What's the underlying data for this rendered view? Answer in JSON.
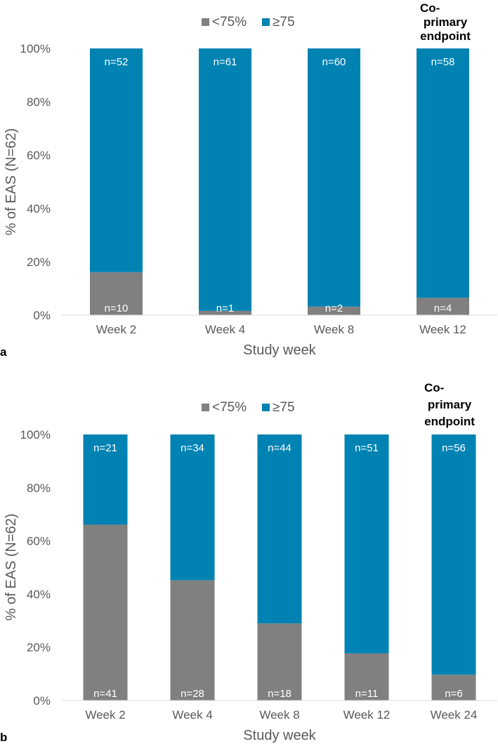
{
  "chart_data": [
    {
      "type": "bar",
      "stacked": true,
      "panel_label": "a",
      "ylabel": "% of EAS (N=62)",
      "xlabel": "Study week",
      "ylim": [
        0,
        100
      ],
      "yticks": [
        "0%",
        "20%",
        "40%",
        "60%",
        "80%",
        "100%"
      ],
      "legend": [
        "<75%",
        "≥75"
      ],
      "categories": [
        "Week 2",
        "Week 4",
        "Week 8",
        "Week 12"
      ],
      "series": [
        {
          "name": "<75%",
          "color": "#808080",
          "values": [
            16.1,
            1.6,
            3.2,
            6.5
          ],
          "labels": [
            "n=10",
            "n=1",
            "n=2",
            "n=4"
          ]
        },
        {
          "name": "≥75",
          "color": "#0083b3",
          "values": [
            83.9,
            98.4,
            96.8,
            93.5
          ],
          "labels": [
            "n=52",
            "n=61",
            "n=60",
            "n=58"
          ]
        }
      ],
      "annotation": {
        "lines": [
          "Co-",
          "primary",
          "endpoint"
        ],
        "category": "Week 12"
      }
    },
    {
      "type": "bar",
      "stacked": true,
      "panel_label": "b",
      "ylabel": "% of EAS (N=62)",
      "xlabel": "Study week",
      "ylim": [
        0,
        100
      ],
      "yticks": [
        "0%",
        "20%",
        "40%",
        "60%",
        "80%",
        "100%"
      ],
      "legend": [
        "<75%",
        "≥75"
      ],
      "categories": [
        "Week 2",
        "Week 4",
        "Week 8",
        "Week 12",
        "Week 24"
      ],
      "series": [
        {
          "name": "<75%",
          "color": "#808080",
          "values": [
            66.1,
            45.2,
            29.0,
            17.7,
            9.7
          ],
          "labels": [
            "n=41",
            "n=28",
            "n=18",
            "n=11",
            "n=6"
          ]
        },
        {
          "name": "≥75",
          "color": "#0083b3",
          "values": [
            33.9,
            54.8,
            71.0,
            82.3,
            90.3
          ],
          "labels": [
            "n=21",
            "n=34",
            "n=44",
            "n=51",
            "n=56"
          ]
        }
      ],
      "annotation": {
        "lines": [
          "Co-",
          "primary",
          "endpoint"
        ],
        "category": "Week 24"
      }
    }
  ]
}
